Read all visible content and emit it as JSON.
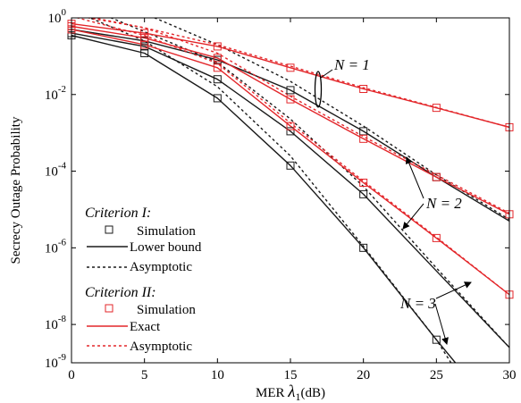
{
  "chart_data": {
    "type": "line",
    "xlabel_prefix": "MER ",
    "xlabel_symbol": "λ",
    "xlabel_sub": "1",
    "xlabel_suffix": "(dB)",
    "ylabel": "Secrecy Outage Probability",
    "xlim": [
      0,
      30
    ],
    "ylim_log10": [
      -9,
      0
    ],
    "yscale": "log",
    "x_ticks": [
      "0",
      "5",
      "10",
      "15",
      "20",
      "25",
      "30"
    ],
    "y_ticks": [
      {
        "base": "10",
        "exp": "0"
      },
      {
        "base": "10",
        "exp": "-2"
      },
      {
        "base": "10",
        "exp": "-4"
      },
      {
        "base": "10",
        "exp": "-6"
      },
      {
        "base": "10",
        "exp": "-8"
      },
      {
        "base": "10",
        "exp": "-9"
      }
    ],
    "colors": {
      "criterion1": "#1a1a1a",
      "criterion2": "#e3262a"
    },
    "legend": {
      "criterion1_title": "Criterion I:",
      "criterion1_simulation": "Simulation",
      "criterion1_bound": "Lower bound",
      "criterion1_asym": "Asymptotic",
      "criterion2_title": "Criterion II:",
      "criterion2_simulation": "Simulation",
      "criterion2_exact": "Exact",
      "criterion2_asym": "Asymptotic"
    },
    "annotations": {
      "n1": "N = 1",
      "n2": "N = 2",
      "n3": "N = 3"
    },
    "series": [
      {
        "name": "Criterion I Simulation (N=1)",
        "criterion": 1,
        "N": 1,
        "kind": "markers",
        "x": [
          0,
          5,
          10,
          15,
          20,
          25
        ],
        "y": [
          0.5,
          0.25,
          0.08,
          0.013,
          0.0011,
          7e-05
        ]
      },
      {
        "name": "Criterion I Lower bound (N=1)",
        "criterion": 1,
        "N": 1,
        "kind": "solid",
        "x": [
          0,
          5,
          10,
          15,
          20,
          25,
          30
        ],
        "y": [
          0.5,
          0.25,
          0.08,
          0.013,
          0.0011,
          7e-05,
          5e-06
        ]
      },
      {
        "name": "Criterion I Asymptotic (N=1)",
        "criterion": 1,
        "N": 1,
        "kind": "dotted",
        "x": [
          5,
          10,
          15,
          20,
          25,
          30
        ],
        "y": [
          1.3,
          0.2,
          0.022,
          0.0015,
          8e-05,
          5.5e-06
        ]
      },
      {
        "name": "Criterion I Simulation (N=2)",
        "criterion": 1,
        "N": 2,
        "kind": "markers",
        "x": [
          0,
          5,
          10,
          15,
          20
        ],
        "y": [
          0.4,
          0.18,
          0.025,
          0.0011,
          2.5e-05
        ]
      },
      {
        "name": "Criterion I Lower bound (N=2)",
        "criterion": 1,
        "N": 2,
        "kind": "solid",
        "x": [
          0,
          5,
          10,
          15,
          20,
          25,
          30
        ],
        "y": [
          0.4,
          0.18,
          0.025,
          0.0011,
          2.5e-05,
          2.5e-07,
          2.5e-09
        ]
      },
      {
        "name": "Criterion I Asymptotic (N=2)",
        "criterion": 1,
        "N": 2,
        "kind": "dotted",
        "x": [
          2,
          10,
          15,
          20,
          25,
          30
        ],
        "y": [
          1.3,
          0.07,
          0.0023,
          4e-05,
          3e-07,
          2.5e-09
        ]
      },
      {
        "name": "Criterion I Simulation (N=3)",
        "criterion": 1,
        "N": 3,
        "kind": "markers",
        "x": [
          0,
          5,
          10,
          15,
          20,
          25
        ],
        "y": [
          0.35,
          0.12,
          0.008,
          0.00014,
          1e-06,
          4e-09
        ]
      },
      {
        "name": "Criterion I Lower bound (N=3)",
        "criterion": 1,
        "N": 3,
        "kind": "solid",
        "x": [
          0,
          5,
          10,
          15,
          20,
          25,
          26.3
        ],
        "y": [
          0.35,
          0.12,
          0.008,
          0.00014,
          1e-06,
          4e-09,
          1e-09
        ]
      },
      {
        "name": "Criterion I Asymptotic (N=3)",
        "criterion": 1,
        "N": 3,
        "kind": "dotted",
        "x": [
          0,
          5,
          10,
          15,
          20,
          25,
          26
        ],
        "y": [
          1.6,
          0.25,
          0.016,
          0.00025,
          1.1e-06,
          4e-09,
          1e-09
        ]
      },
      {
        "name": "Criterion II Simulation (N=1)",
        "criterion": 2,
        "N": 1,
        "kind": "markers",
        "x": [
          0,
          5,
          10,
          15,
          20,
          25,
          30
        ],
        "y": [
          0.7,
          0.4,
          0.18,
          0.05,
          0.014,
          0.0045,
          0.0014
        ]
      },
      {
        "name": "Criterion II Exact (N=1)",
        "criterion": 2,
        "N": 1,
        "kind": "solid",
        "x": [
          0,
          5,
          10,
          15,
          20,
          25,
          30
        ],
        "y": [
          0.7,
          0.4,
          0.18,
          0.05,
          0.014,
          0.0045,
          0.0014
        ]
      },
      {
        "name": "Criterion II Asymptotic (N=1)",
        "criterion": 2,
        "N": 1,
        "kind": "dotted",
        "x": [
          0,
          5,
          10,
          15,
          20,
          25,
          30
        ],
        "y": [
          1.2,
          0.55,
          0.2,
          0.055,
          0.015,
          0.0046,
          0.0014
        ]
      },
      {
        "name": "Criterion II Simulation (N=2)",
        "criterion": 2,
        "N": 2,
        "kind": "markers",
        "x": [
          0,
          5,
          10,
          15,
          20,
          25,
          30
        ],
        "y": [
          0.6,
          0.3,
          0.09,
          0.0075,
          0.0007,
          7e-05,
          7.5e-06
        ]
      },
      {
        "name": "Criterion II Exact (N=2)",
        "criterion": 2,
        "N": 2,
        "kind": "solid",
        "x": [
          0,
          5,
          10,
          15,
          20,
          25,
          30
        ],
        "y": [
          0.6,
          0.3,
          0.09,
          0.0075,
          0.0007,
          7e-05,
          7.5e-06
        ]
      },
      {
        "name": "Criterion II Asymptotic (N=2)",
        "criterion": 2,
        "N": 2,
        "kind": "dotted",
        "x": [
          0,
          5,
          10,
          15,
          20,
          25,
          30
        ],
        "y": [
          1.3,
          0.55,
          0.12,
          0.009,
          0.0008,
          8e-05,
          8e-06
        ]
      },
      {
        "name": "Criterion II Simulation (N=3)",
        "criterion": 2,
        "N": 3,
        "kind": "markers",
        "x": [
          0,
          5,
          10,
          15,
          20,
          25,
          30
        ],
        "y": [
          0.5,
          0.2,
          0.05,
          0.0015,
          5e-05,
          1.8e-06,
          6e-08
        ]
      },
      {
        "name": "Criterion II Exact (N=3)",
        "criterion": 2,
        "N": 3,
        "kind": "solid",
        "x": [
          0,
          5,
          10,
          15,
          20,
          25,
          30
        ],
        "y": [
          0.5,
          0.2,
          0.05,
          0.0015,
          5e-05,
          1.8e-06,
          6e-08
        ]
      },
      {
        "name": "Criterion II Asymptotic (N=3)",
        "criterion": 2,
        "N": 3,
        "kind": "dotted",
        "x": [
          0,
          5,
          10,
          15,
          20,
          25,
          30
        ],
        "y": [
          1.1,
          0.35,
          0.065,
          0.0018,
          5.5e-05,
          1.9e-06,
          6e-08
        ]
      }
    ]
  }
}
